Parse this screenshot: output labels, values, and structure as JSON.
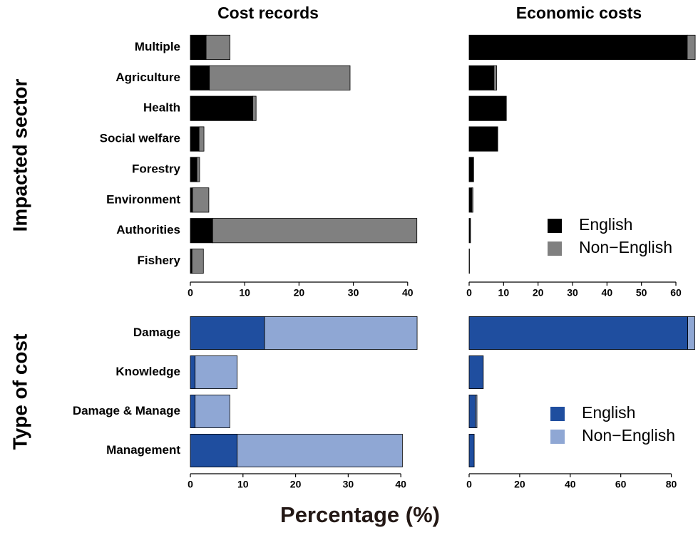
{
  "column_titles": [
    "Cost records",
    "Economic costs"
  ],
  "row_labels": [
    "Impacted sector",
    "Type of cost"
  ],
  "xlabel": "Percentage (%)",
  "chart_data": [
    {
      "type": "bar",
      "horizontal": true,
      "stacked": true,
      "categories": [
        "Multiple",
        "Agriculture",
        "Health",
        "Social welfare",
        "Forestry",
        "Environment",
        "Authorities",
        "Fishery"
      ],
      "series": [
        {
          "name": "English",
          "color": "#000000",
          "values": [
            2.9,
            3.5,
            11.5,
            1.6,
            1.2,
            0.4,
            4.1,
            0.3
          ]
        },
        {
          "name": "Non−English",
          "color": "#808080",
          "values": [
            4.4,
            25.9,
            0.6,
            0.9,
            0.5,
            3.0,
            37.6,
            2.1
          ]
        }
      ],
      "xlim": [
        0,
        42
      ],
      "xticks": [
        0,
        10,
        20,
        30,
        40
      ]
    },
    {
      "type": "bar",
      "horizontal": true,
      "stacked": true,
      "categories": [
        null,
        null,
        null,
        null,
        null,
        null,
        null,
        null
      ],
      "series": [
        {
          "name": "English",
          "color": "#000000",
          "values": [
            63.3,
            7.2,
            10.8,
            8.3,
            1.2,
            0.8,
            0.4,
            0.1
          ]
        },
        {
          "name": "Non−English",
          "color": "#808080",
          "values": [
            2.3,
            0.8,
            0,
            0,
            0.1,
            0.3,
            0,
            0
          ]
        }
      ],
      "xlim": [
        0,
        66
      ],
      "xticks": [
        0,
        10,
        20,
        30,
        40,
        50,
        60
      ],
      "legend": "lower right"
    },
    {
      "type": "bar",
      "horizontal": true,
      "stacked": true,
      "categories": [
        "Damage",
        "Knowledge",
        "Damage & Manage",
        "Management"
      ],
      "series": [
        {
          "name": "English",
          "color": "#1f4e9f",
          "values": [
            14.1,
            0.9,
            0.9,
            8.9
          ]
        },
        {
          "name": "Non−English",
          "color": "#8fa7d4",
          "values": [
            29.0,
            8.0,
            6.6,
            31.4
          ]
        }
      ],
      "xlim": [
        0,
        43.5
      ],
      "xticks": [
        0,
        10,
        20,
        30,
        40
      ]
    },
    {
      "type": "bar",
      "horizontal": true,
      "stacked": true,
      "categories": [
        null,
        null,
        null,
        null
      ],
      "series": [
        {
          "name": "English",
          "color": "#1f4e9f",
          "values": [
            86.5,
            5.6,
            2.5,
            2.0
          ]
        },
        {
          "name": "Non−English",
          "color": "#8fa7d4",
          "values": [
            2.8,
            0,
            0.6,
            0
          ]
        }
      ],
      "xlim": [
        0,
        90
      ],
      "xticks": [
        0,
        20,
        40,
        60,
        80
      ],
      "legend": "lower right"
    }
  ]
}
